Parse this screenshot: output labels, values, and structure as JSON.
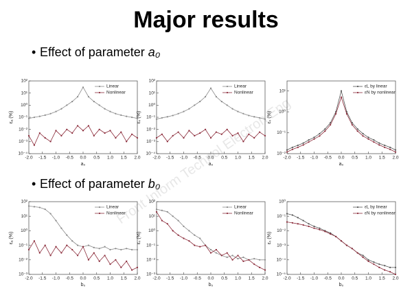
{
  "title": "Major results",
  "watermark": "Front Inform Technol Electron Eng",
  "bullets": [
    {
      "text": "Effect of parameter ",
      "param": "a₀"
    },
    {
      "text": "Effect of parameter ",
      "param": "b₀"
    }
  ],
  "chart_data": [
    {
      "type": "line",
      "xlabel": "a₀",
      "ylabel": "εₐ (%)",
      "log_y": true,
      "legend": "upper right",
      "x": [
        -2,
        -1.8,
        -1.6,
        -1.4,
        -1.2,
        -1,
        -0.8,
        -0.6,
        -0.4,
        -0.2,
        0,
        0.2,
        0.4,
        0.6,
        0.8,
        1,
        1.2,
        1.4,
        1.6,
        1.8,
        2
      ],
      "xlim": [
        -2,
        2
      ],
      "xticks": [
        {
          "value": -2,
          "label": "-2.0"
        },
        -1.5,
        {
          "value": -1,
          "label": "-1.0"
        },
        -0.5,
        {
          "value": 0,
          "label": "0.0"
        },
        0.5,
        {
          "value": 1,
          "label": "1.0"
        },
        1.5,
        {
          "value": 2,
          "label": "2.0"
        }
      ],
      "ylim": [
        0.0001,
        100
      ],
      "yticks": [
        {
          "value": 100,
          "label": "10²"
        },
        {
          "value": 10,
          "label": "10¹"
        },
        {
          "value": 1,
          "label": "10⁰"
        },
        {
          "value": 0.1,
          "label": "10⁻¹"
        },
        {
          "value": 0.01,
          "label": "10⁻²"
        },
        {
          "value": 0.001,
          "label": "10⁻³"
        },
        {
          "value": 0.0001,
          "label": "10⁻⁴"
        }
      ],
      "series": [
        {
          "name": "Linear",
          "color": "#8a8a8a",
          "values": [
            0.08,
            0.1,
            0.12,
            0.15,
            0.2,
            0.3,
            0.5,
            1,
            2,
            5,
            30,
            5,
            2,
            1,
            0.5,
            0.3,
            0.2,
            0.15,
            0.12,
            0.1,
            0.08
          ]
        },
        {
          "name": "Nonlinear",
          "color": "#8b2b3a",
          "values": [
            0.003,
            0.0005,
            0.005,
            0.002,
            0.001,
            0.008,
            0.003,
            0.01,
            0.005,
            0.02,
            0.008,
            0.02,
            0.003,
            0.01,
            0.005,
            0.008,
            0.002,
            0.006,
            0.001,
            0.004,
            0.002
          ]
        }
      ]
    },
    {
      "type": "line",
      "xlabel": "a₀",
      "ylabel": "εₛ (%)",
      "log_y": true,
      "legend": "upper right",
      "x": [
        -2,
        -1.8,
        -1.6,
        -1.4,
        -1.2,
        -1,
        -0.8,
        -0.6,
        -0.4,
        -0.2,
        0,
        0.2,
        0.4,
        0.6,
        0.8,
        1,
        1.2,
        1.4,
        1.6,
        1.8,
        2
      ],
      "xlim": [
        -2,
        2
      ],
      "xticks": [
        {
          "value": -2,
          "label": "-2.0"
        },
        -1.5,
        {
          "value": -1,
          "label": "-1.0"
        },
        -0.5,
        {
          "value": 0,
          "label": "0.0"
        },
        0.5,
        {
          "value": 1,
          "label": "1.0"
        },
        1.5,
        {
          "value": 2,
          "label": "2.0"
        }
      ],
      "ylim": [
        0.0001,
        100
      ],
      "yticks": [
        {
          "value": 100,
          "label": "10²"
        },
        {
          "value": 10,
          "label": "10¹"
        },
        {
          "value": 1,
          "label": "10⁰"
        },
        {
          "value": 0.1,
          "label": "10⁻¹"
        },
        {
          "value": 0.01,
          "label": "10⁻²"
        },
        {
          "value": 0.001,
          "label": "10⁻³"
        },
        {
          "value": 0.0001,
          "label": "10⁻⁴"
        }
      ],
      "series": [
        {
          "name": "Linear",
          "color": "#8a8a8a",
          "values": [
            0.07,
            0.09,
            0.11,
            0.14,
            0.2,
            0.3,
            0.5,
            1,
            2,
            5,
            25,
            5,
            2,
            1,
            0.5,
            0.3,
            0.2,
            0.14,
            0.11,
            0.09,
            0.07
          ]
        },
        {
          "name": "Nonlinear",
          "color": "#8b2b3a",
          "values": [
            0.002,
            0.004,
            0.001,
            0.003,
            0.006,
            0.002,
            0.008,
            0.003,
            0.005,
            0.01,
            0.002,
            0.006,
            0.004,
            0.01,
            0.003,
            0.005,
            0.001,
            0.004,
            0.002,
            0.006,
            0.003
          ]
        }
      ]
    },
    {
      "type": "line",
      "xlabel": "a₀",
      "ylabel": "εₛ (%)",
      "log_y": true,
      "legend": "upper right",
      "x": [
        -2,
        -1.8,
        -1.6,
        -1.4,
        -1.2,
        -1,
        -0.8,
        -0.6,
        -0.4,
        -0.2,
        0,
        0.2,
        0.4,
        0.6,
        0.8,
        1,
        1.2,
        1.4,
        1.6,
        1.8,
        2
      ],
      "xlim": [
        -2,
        2
      ],
      "xticks": [
        {
          "value": -2,
          "label": "-2.0"
        },
        -1.5,
        {
          "value": -1,
          "label": "-1.0"
        },
        -0.5,
        {
          "value": 0,
          "label": "0.0"
        },
        0.5,
        {
          "value": 1,
          "label": "1.0"
        },
        1.5,
        {
          "value": 2,
          "label": "2.0"
        }
      ],
      "ylim": [
        0.01,
        30
      ],
      "yticks": [
        {
          "value": 10,
          "label": "10¹"
        },
        {
          "value": 1,
          "label": "10⁰"
        },
        {
          "value": 0.1,
          "label": "10⁻¹"
        },
        {
          "value": 0.01,
          "label": "10⁻²"
        }
      ],
      "series": [
        {
          "name": "εL by linear",
          "color": "#555555",
          "values": [
            0.015,
            0.02,
            0.025,
            0.032,
            0.045,
            0.06,
            0.09,
            0.15,
            0.3,
            1,
            10,
            1,
            0.3,
            0.15,
            0.09,
            0.06,
            0.045,
            0.032,
            0.025,
            0.02,
            0.015
          ]
        },
        {
          "name": "εN by nonlinear",
          "color": "#8b2b3a",
          "values": [
            0.012,
            0.016,
            0.02,
            0.026,
            0.036,
            0.05,
            0.07,
            0.12,
            0.24,
            0.8,
            5,
            0.8,
            0.24,
            0.12,
            0.07,
            0.05,
            0.036,
            0.026,
            0.02,
            0.016,
            0.012
          ]
        }
      ]
    },
    {
      "type": "line",
      "xlabel": "b₀",
      "ylabel": "εₐ (%)",
      "log_y": true,
      "legend": "upper right",
      "x": [
        -2,
        -1.8,
        -1.6,
        -1.4,
        -1.2,
        -1,
        -0.8,
        -0.6,
        -0.4,
        -0.2,
        0,
        0.2,
        0.4,
        0.6,
        0.8,
        1,
        1.2,
        1.4,
        1.6,
        1.8,
        2
      ],
      "xlim": [
        -2,
        2
      ],
      "xticks": [
        {
          "value": -2,
          "label": "-2.0"
        },
        -1.5,
        {
          "value": -1,
          "label": "-1.0"
        },
        -0.5,
        {
          "value": 0,
          "label": "0.0"
        },
        0.5,
        {
          "value": 1,
          "label": "1.0"
        },
        1.5,
        {
          "value": 2,
          "label": "2.0"
        }
      ],
      "ylim": [
        0.001,
        100
      ],
      "yticks": [
        {
          "value": 100,
          "label": "10²"
        },
        {
          "value": 10,
          "label": "10¹"
        },
        {
          "value": 1,
          "label": "10⁰"
        },
        {
          "value": 0.1,
          "label": "10⁻¹"
        },
        {
          "value": 0.01,
          "label": "10⁻²"
        },
        {
          "value": 0.001,
          "label": "10⁻³"
        }
      ],
      "series": [
        {
          "name": "Linear",
          "color": "#8a8a8a",
          "values": [
            50,
            45,
            40,
            30,
            15,
            5,
            1.5,
            0.5,
            0.2,
            0.1,
            0.08,
            0.1,
            0.07,
            0.06,
            0.08,
            0.05,
            0.06,
            0.05,
            0.06,
            0.05,
            0.05
          ]
        },
        {
          "name": "Nonlinear",
          "color": "#8b2b3a",
          "values": [
            0.05,
            0.2,
            0.03,
            0.1,
            0.02,
            0.08,
            0.03,
            0.1,
            0.05,
            0.02,
            0.08,
            0.01,
            0.03,
            0.008,
            0.02,
            0.005,
            0.01,
            0.003,
            0.008,
            0.002,
            0.003
          ]
        }
      ]
    },
    {
      "type": "line",
      "xlabel": "b₀",
      "ylabel": "εₛ (%)",
      "log_y": true,
      "legend": "upper right",
      "x": [
        -2,
        -1.8,
        -1.6,
        -1.4,
        -1.2,
        -1,
        -0.8,
        -0.6,
        -0.4,
        -0.2,
        0,
        0.2,
        0.4,
        0.6,
        0.8,
        1,
        1.2,
        1.4,
        1.6,
        1.8,
        2
      ],
      "xlim": [
        -2,
        2
      ],
      "xticks": [
        {
          "value": -2,
          "label": "-2.0"
        },
        -1.5,
        {
          "value": -1,
          "label": "-1.0"
        },
        -0.5,
        {
          "value": 0,
          "label": "0.0"
        },
        0.5,
        {
          "value": 1,
          "label": "1.0"
        },
        1.5,
        {
          "value": 2,
          "label": "2.0"
        }
      ],
      "ylim": [
        0.001,
        100
      ],
      "yticks": [
        {
          "value": 100,
          "label": "10²"
        },
        {
          "value": 10,
          "label": "10¹"
        },
        {
          "value": 1,
          "label": "10⁰"
        },
        {
          "value": 0.1,
          "label": "10⁻¹"
        },
        {
          "value": 0.01,
          "label": "10⁻²"
        },
        {
          "value": 0.001,
          "label": "10⁻³"
        }
      ],
      "series": [
        {
          "name": "Linear",
          "color": "#8a8a8a",
          "values": [
            30,
            25,
            20,
            10,
            5,
            2,
            1,
            0.5,
            0.3,
            0.1,
            0.05,
            0.03,
            0.02,
            0.015,
            0.02,
            0.012,
            0.015,
            0.01,
            0.012,
            0.01,
            0.01
          ]
        },
        {
          "name": "Nonlinear",
          "color": "#8b2b3a",
          "values": [
            20,
            5,
            3,
            1,
            0.5,
            0.3,
            0.2,
            0.1,
            0.08,
            0.1,
            0.03,
            0.05,
            0.02,
            0.03,
            0.01,
            0.02,
            0.008,
            0.01,
            0.005,
            0.003,
            0.002
          ]
        }
      ]
    },
    {
      "type": "line",
      "xlabel": "b₀",
      "ylabel": "εₛ (%)",
      "log_y": true,
      "legend": "upper right",
      "x": [
        -2,
        -1.8,
        -1.6,
        -1.4,
        -1.2,
        -1,
        -0.8,
        -0.6,
        -0.4,
        -0.2,
        0,
        0.2,
        0.4,
        0.6,
        0.8,
        1,
        1.2,
        1.4,
        1.6,
        1.8,
        2
      ],
      "xlim": [
        -2,
        2
      ],
      "xticks": [
        {
          "value": -2,
          "label": "-2.0"
        },
        -1.5,
        {
          "value": -1,
          "label": "-1.0"
        },
        -0.5,
        {
          "value": 0,
          "label": "0.0"
        },
        0.5,
        {
          "value": 1,
          "label": "1.0"
        },
        1.5,
        {
          "value": 2,
          "label": "2.0"
        }
      ],
      "ylim": [
        1e-05,
        1
      ],
      "yticks": [
        {
          "value": 1,
          "label": "10⁰"
        },
        {
          "value": 0.1,
          "label": "10⁻¹"
        },
        {
          "value": 0.01,
          "label": "10⁻²"
        },
        {
          "value": 0.001,
          "label": "10⁻³"
        },
        {
          "value": 0.0001,
          "label": "10⁻⁴"
        },
        {
          "value": 1e-05,
          "label": "10⁻⁵"
        }
      ],
      "series": [
        {
          "name": "εL by linear",
          "color": "#555555",
          "values": [
            0.15,
            0.12,
            0.08,
            0.05,
            0.03,
            0.02,
            0.015,
            0.01,
            0.007,
            0.004,
            0.002,
            0.001,
            0.0006,
            0.0003,
            0.0002,
            0.0001,
            7e-05,
            5e-05,
            4e-05,
            3e-05,
            3e-05
          ]
        },
        {
          "name": "εN by nonlinear",
          "color": "#8b2b3a",
          "values": [
            0.04,
            0.035,
            0.03,
            0.025,
            0.02,
            0.015,
            0.012,
            0.009,
            0.006,
            0.004,
            0.002,
            0.001,
            0.0006,
            0.0003,
            0.00015,
            8e-05,
            5e-05,
            3e-05,
            2e-05,
            1.5e-05,
            1e-05
          ]
        }
      ]
    }
  ]
}
